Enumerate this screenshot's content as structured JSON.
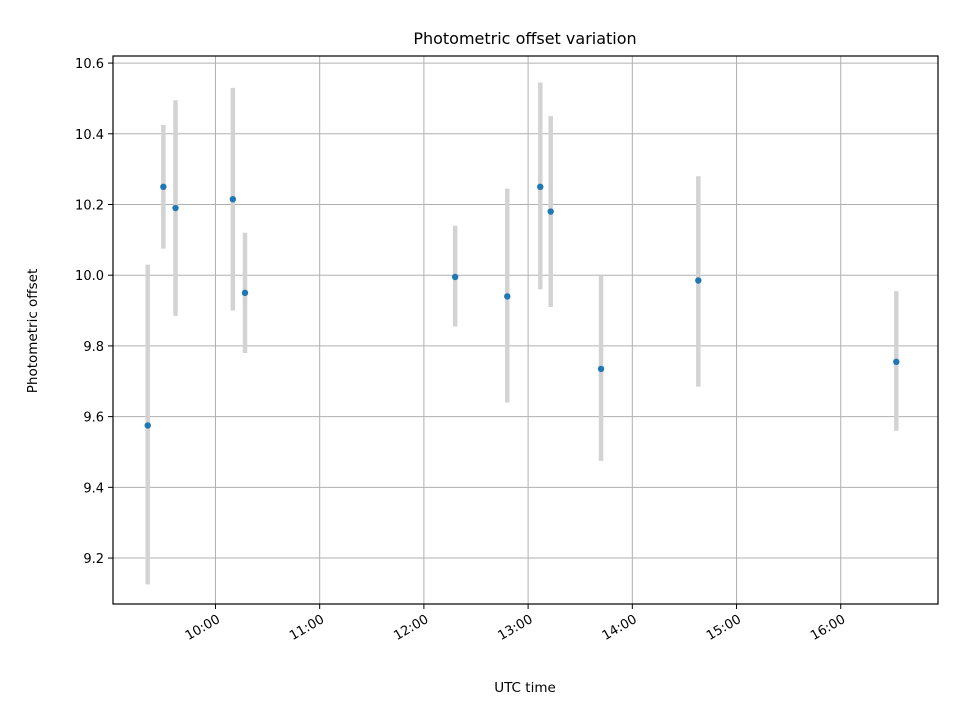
{
  "chart_data": {
    "type": "scatter",
    "title": "Photometric offset variation",
    "xlabel": "UTC time",
    "ylabel": "Photometric offset",
    "x_ticks": [
      "10:00",
      "11:00",
      "12:00",
      "13:00",
      "14:00",
      "15:00",
      "16:00"
    ],
    "y_ticks": [
      "9.2",
      "9.4",
      "9.6",
      "9.8",
      "10.0",
      "10.2",
      "10.4",
      "10.6"
    ],
    "xlim": [
      "09:01",
      "16:56"
    ],
    "ylim": [
      9.07,
      10.62
    ],
    "grid": true,
    "points": [
      {
        "x": "09:21",
        "y": 9.575,
        "err_low": 9.125,
        "err_high": 10.03
      },
      {
        "x": "09:30",
        "y": 10.25,
        "err_low": 10.075,
        "err_high": 10.425
      },
      {
        "x": "09:37",
        "y": 10.19,
        "err_low": 9.885,
        "err_high": 10.495
      },
      {
        "x": "10:10",
        "y": 10.215,
        "err_low": 9.9,
        "err_high": 10.53
      },
      {
        "x": "10:17",
        "y": 9.95,
        "err_low": 9.78,
        "err_high": 10.12
      },
      {
        "x": "12:18",
        "y": 9.995,
        "err_low": 9.855,
        "err_high": 10.14
      },
      {
        "x": "12:48",
        "y": 9.94,
        "err_low": 9.64,
        "err_high": 10.245
      },
      {
        "x": "13:07",
        "y": 10.25,
        "err_low": 9.96,
        "err_high": 10.545
      },
      {
        "x": "13:13",
        "y": 10.18,
        "err_low": 9.91,
        "err_high": 10.45
      },
      {
        "x": "13:42",
        "y": 9.735,
        "err_low": 9.475,
        "err_high": 10.0
      },
      {
        "x": "14:38",
        "y": 9.985,
        "err_low": 9.685,
        "err_high": 10.28
      },
      {
        "x": "16:32",
        "y": 9.755,
        "err_low": 9.56,
        "err_high": 9.955
      }
    ],
    "colors": {
      "marker": "#1f77b4",
      "errorbar": "#d3d3d3",
      "grid": "#b0b0b0",
      "axes": "#000000"
    }
  }
}
